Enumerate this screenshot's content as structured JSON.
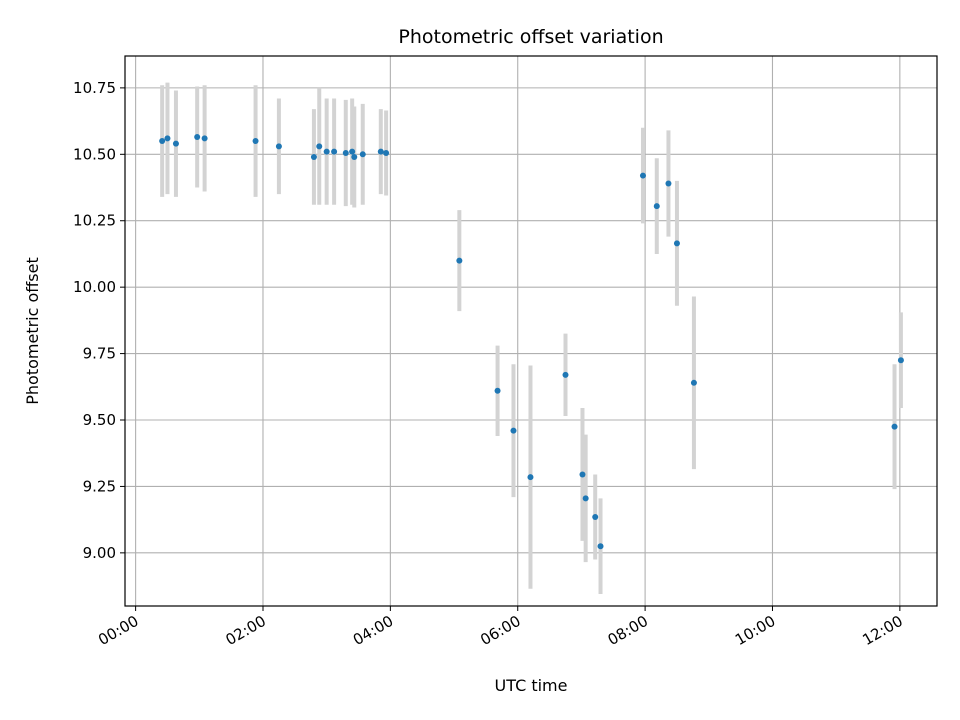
{
  "chart_data": {
    "type": "scatter",
    "title": "Photometric offset variation",
    "xlabel": "UTC time",
    "ylabel": "Photometric offset",
    "x_unit": "hours",
    "x_tick_values": [
      0,
      2,
      4,
      6,
      8,
      10,
      12
    ],
    "x_tick_labels": [
      "00:00",
      "02:00",
      "04:00",
      "06:00",
      "08:00",
      "10:00",
      "12:00"
    ],
    "y_tick_values": [
      9.0,
      9.25,
      9.5,
      9.75,
      10.0,
      10.25,
      10.5,
      10.75
    ],
    "y_tick_labels": [
      "9.00",
      "9.25",
      "9.50",
      "9.75",
      "10.00",
      "10.25",
      "10.50",
      "10.75"
    ],
    "xlim": [
      "23:50",
      "12:35"
    ],
    "ylim": [
      8.8,
      10.87
    ],
    "grid": true,
    "colors": {
      "point": "#1f77b4",
      "errorbar": "#d3d3d3",
      "grid": "#b0b0b0"
    },
    "points": [
      {
        "x": "00:25",
        "y": 10.55,
        "err": 0.21
      },
      {
        "x": "00:30",
        "y": 10.56,
        "err": 0.21
      },
      {
        "x": "00:38",
        "y": 10.54,
        "err": 0.2
      },
      {
        "x": "00:58",
        "y": 10.565,
        "err": 0.19
      },
      {
        "x": "01:05",
        "y": 10.56,
        "err": 0.2
      },
      {
        "x": "01:53",
        "y": 10.55,
        "err": 0.21
      },
      {
        "x": "02:15",
        "y": 10.53,
        "err": 0.18
      },
      {
        "x": "02:48",
        "y": 10.49,
        "err": 0.18
      },
      {
        "x": "02:53",
        "y": 10.53,
        "err": 0.22
      },
      {
        "x": "03:00",
        "y": 10.51,
        "err": 0.2
      },
      {
        "x": "03:07",
        "y": 10.51,
        "err": 0.2
      },
      {
        "x": "03:18",
        "y": 10.505,
        "err": 0.2
      },
      {
        "x": "03:24",
        "y": 10.51,
        "err": 0.2
      },
      {
        "x": "03:26",
        "y": 10.49,
        "err": 0.19
      },
      {
        "x": "03:34",
        "y": 10.5,
        "err": 0.19
      },
      {
        "x": "03:51",
        "y": 10.51,
        "err": 0.16
      },
      {
        "x": "03:56",
        "y": 10.505,
        "err": 0.16
      },
      {
        "x": "05:05",
        "y": 10.1,
        "err": 0.19
      },
      {
        "x": "05:41",
        "y": 9.61,
        "err": 0.17
      },
      {
        "x": "05:56",
        "y": 9.46,
        "err": 0.25
      },
      {
        "x": "06:12",
        "y": 9.285,
        "err": 0.42
      },
      {
        "x": "06:45",
        "y": 9.67,
        "err": 0.155
      },
      {
        "x": "07:01",
        "y": 9.295,
        "err": 0.25
      },
      {
        "x": "07:04",
        "y": 9.205,
        "err": 0.24
      },
      {
        "x": "07:13",
        "y": 9.135,
        "err": 0.16
      },
      {
        "x": "07:18",
        "y": 9.025,
        "err": 0.18
      },
      {
        "x": "07:58",
        "y": 10.42,
        "err": 0.18
      },
      {
        "x": "08:11",
        "y": 10.305,
        "err": 0.18
      },
      {
        "x": "08:22",
        "y": 10.39,
        "err": 0.2
      },
      {
        "x": "08:30",
        "y": 10.165,
        "err": 0.235
      },
      {
        "x": "08:46",
        "y": 9.64,
        "err": 0.325
      },
      {
        "x": "11:55",
        "y": 9.475,
        "err": 0.235
      },
      {
        "x": "12:01",
        "y": 9.725,
        "err": 0.18
      }
    ]
  }
}
